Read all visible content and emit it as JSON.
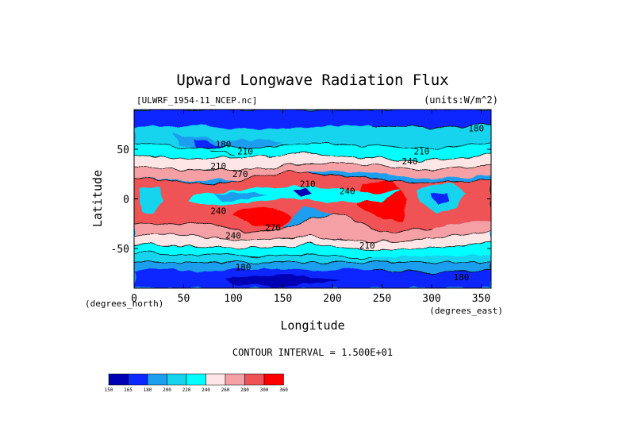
{
  "chart_data": {
    "type": "heatmap",
    "title": "Upward Longwave Radiation Flux",
    "subtitle_left": "[ULWRF_1954-11_NCEP.nc]",
    "subtitle_right": "(units:W/m^2)",
    "xlabel": "Longitude",
    "ylabel": "Latitude",
    "x_unit_note": "(degrees_east)",
    "y_unit_note": "(degrees_north)",
    "xlim": [
      0,
      360
    ],
    "ylim": [
      -90,
      90
    ],
    "x_ticks": [
      0,
      50,
      100,
      150,
      200,
      250,
      300,
      350
    ],
    "y_ticks": [
      50,
      0,
      -50
    ],
    "contour_interval_text": "CONTOUR INTERVAL = 1.500E+01",
    "contour_labels": [
      {
        "lon": 345,
        "lat": 68,
        "text": "180"
      },
      {
        "lon": 90,
        "lat": 52,
        "text": "180"
      },
      {
        "lon": 112,
        "lat": 45,
        "text": "210"
      },
      {
        "lon": 290,
        "lat": 45,
        "text": "210"
      },
      {
        "lon": 278,
        "lat": 35,
        "text": "240"
      },
      {
        "lon": 85,
        "lat": 30,
        "text": "210"
      },
      {
        "lon": 107,
        "lat": 22,
        "text": "270"
      },
      {
        "lon": 175,
        "lat": 12,
        "text": "210"
      },
      {
        "lon": 215,
        "lat": 5,
        "text": "240"
      },
      {
        "lon": 85,
        "lat": -15,
        "text": "240"
      },
      {
        "lon": 140,
        "lat": -32,
        "text": "270"
      },
      {
        "lon": 100,
        "lat": -40,
        "text": "240"
      },
      {
        "lon": 235,
        "lat": -50,
        "text": "210"
      },
      {
        "lon": 110,
        "lat": -72,
        "text": "180"
      },
      {
        "lon": 330,
        "lat": -82,
        "text": "180"
      }
    ],
    "colorbar": {
      "levels": [
        "150",
        "165",
        "180",
        "200",
        "220",
        "240",
        "260",
        "280",
        "300",
        "360"
      ],
      "colors": [
        "#0000b4",
        "#0a28ff",
        "#1d9eee",
        "#17d4ee",
        "#00ffff",
        "#ffe6e6",
        "#f5a0a5",
        "#f05355",
        "#ff0000"
      ]
    }
  }
}
